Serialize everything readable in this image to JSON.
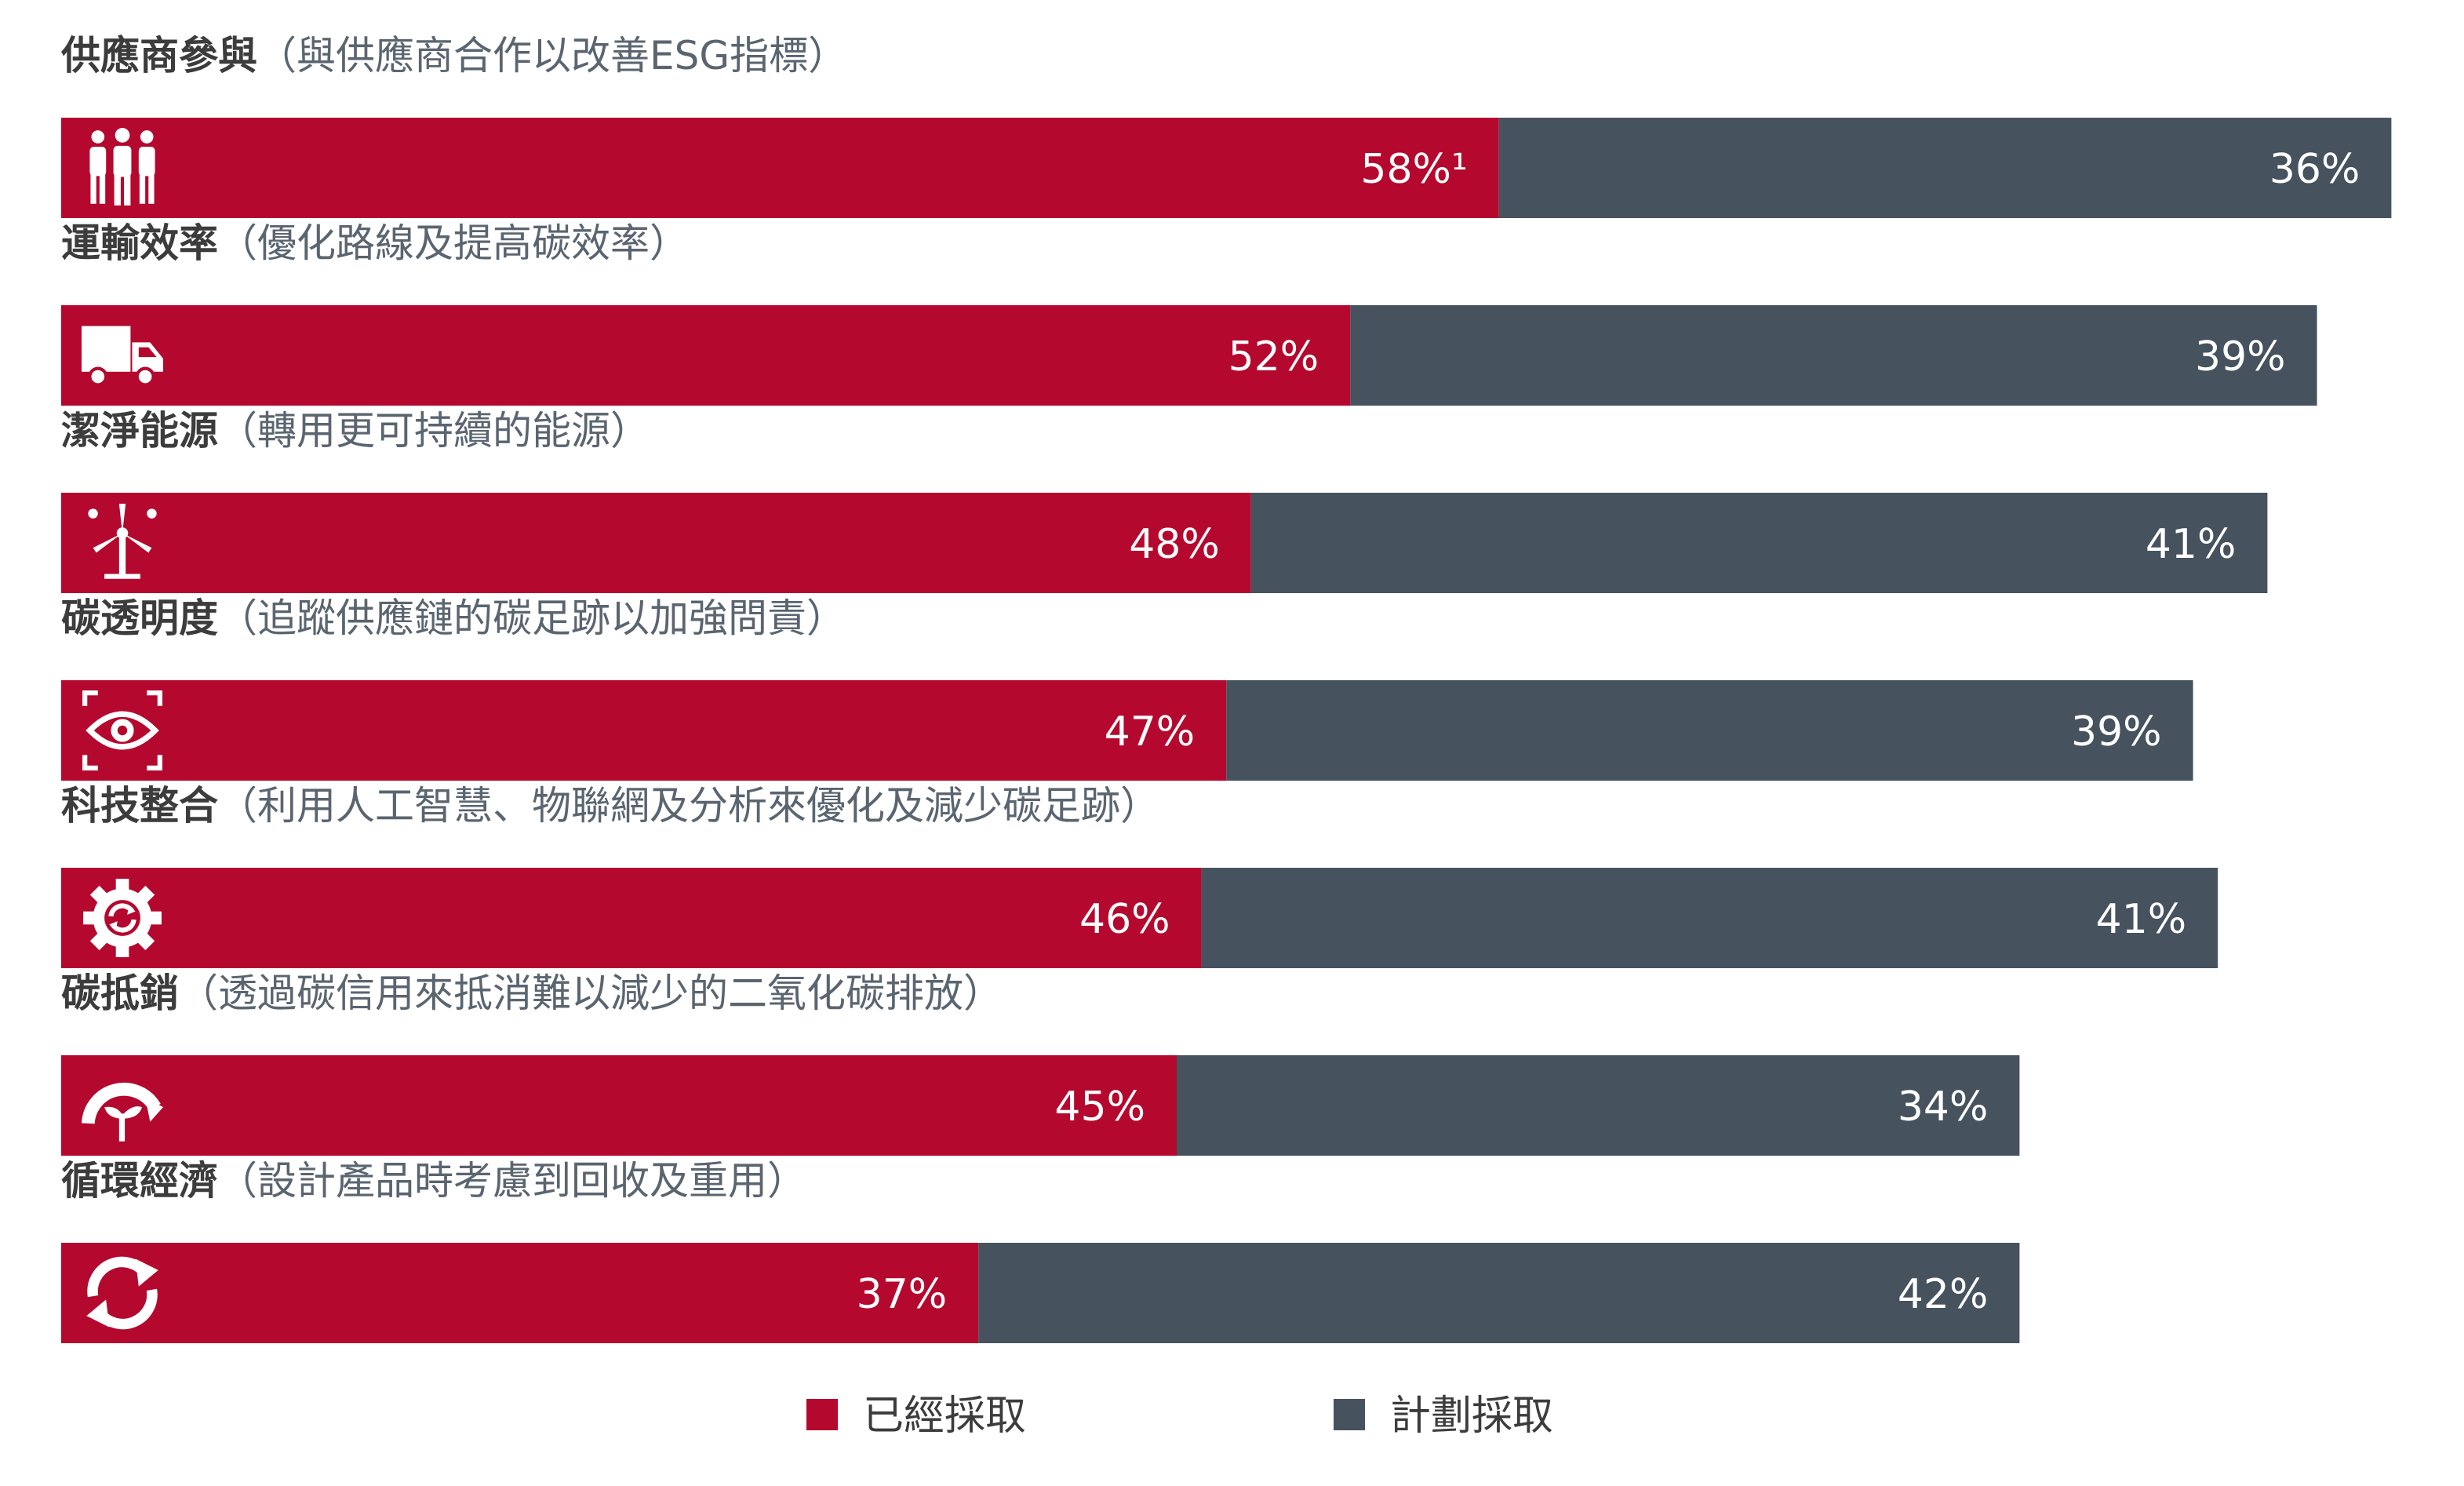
{
  "chart_data": {
    "type": "bar",
    "orientation": "horizontal",
    "stacked": true,
    "xlim": [
      0,
      100
    ],
    "grid": false,
    "legend_position": "bottom",
    "categories": [
      {
        "title": "供應商參與",
        "desc": "（與供應商合作以改善ESG指標）",
        "icon": "people-icon"
      },
      {
        "title": "運輸效率",
        "desc": "（優化路線及提高碳效率）",
        "icon": "truck-icon"
      },
      {
        "title": "潔淨能源",
        "desc": "（轉用更可持續的能源）",
        "icon": "wind-turbine-icon"
      },
      {
        "title": "碳透明度",
        "desc": "（追蹤供應鏈的碳足跡以加強問責）",
        "icon": "eye-icon"
      },
      {
        "title": "科技整合",
        "desc": "（利用人工智慧、物聯網及分析來優化及減少碳足跡）",
        "icon": "gear-refresh-icon"
      },
      {
        "title": "碳抵銷",
        "desc": "（透過碳信用來抵消難以減少的二氧化碳排放）",
        "icon": "carbon-offset-icon"
      },
      {
        "title": "循環經濟",
        "desc": "（設計產品時考慮到回收及重用）",
        "icon": "recycle-icon"
      }
    ],
    "series": [
      {
        "name": "已經採取",
        "color": "#b5082e",
        "values": [
          58,
          52,
          48,
          47,
          46,
          45,
          37
        ],
        "labels": [
          "58%¹",
          "52%",
          "48%",
          "47%",
          "46%",
          "45%",
          "37%"
        ]
      },
      {
        "name": "計劃採取",
        "color": "#46525e",
        "values": [
          36,
          39,
          41,
          39,
          41,
          34,
          42
        ],
        "labels": [
          "36%",
          "39%",
          "41%",
          "39%",
          "41%",
          "34%",
          "42%"
        ]
      }
    ],
    "colors": {
      "title_text": "#3c3c3c",
      "desc_text": "#5a6570",
      "legend_text": "#3c3c3c"
    }
  }
}
